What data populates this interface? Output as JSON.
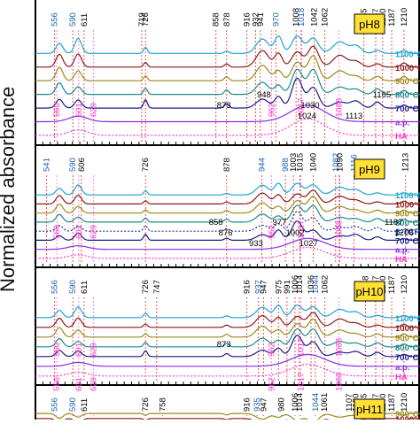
{
  "chart_data": {
    "type": "line",
    "ylabel": "Normalized absorbance",
    "x_direction": "decreasing",
    "panels": [
      {
        "label": "pH8",
        "series": [
          {
            "name": "1100°C",
            "color": "#1ba3d6"
          },
          {
            "name": "1000°C",
            "color": "#8b1a1a"
          },
          {
            "name": "900°C",
            "color": "#9a8a1a"
          },
          {
            "name": "800°C",
            "color": "#1a8a8a"
          },
          {
            "name": "700°C",
            "color": "#1a1a8a"
          },
          {
            "name": "a.p.",
            "color": "#8a2be2"
          },
          {
            "name": "HA",
            "color": "#ff33cc"
          }
        ],
        "top_labels": [
          {
            "text": "556",
            "x": 556,
            "color": "#1a5fb4"
          },
          {
            "text": "560",
            "x": 560,
            "color": "#ff33cc"
          },
          {
            "text": "590",
            "x": 590,
            "color": "#1a5fb4"
          },
          {
            "text": "601",
            "x": 601,
            "color": "#ff33cc"
          },
          {
            "text": "611",
            "x": 611,
            "color": "#000000"
          },
          {
            "text": "629",
            "x": 629,
            "color": "#ff33cc"
          },
          {
            "text": "719",
            "x": 719,
            "color": "#000000"
          },
          {
            "text": "726",
            "x": 726,
            "color": "#000000"
          },
          {
            "text": "858",
            "x": 858,
            "color": "#000000"
          },
          {
            "text": "878",
            "x": 878,
            "color": "#000000"
          },
          {
            "text": "916",
            "x": 916,
            "color": "#000000"
          },
          {
            "text": "932",
            "x": 932,
            "color": "#000000"
          },
          {
            "text": "941",
            "x": 941,
            "color": "#000000"
          },
          {
            "text": "962",
            "x": 962,
            "color": "#ff33cc"
          },
          {
            "text": "970",
            "x": 970,
            "color": "#1a5fb4"
          },
          {
            "text": "1008",
            "x": 1008,
            "color": "#000000"
          },
          {
            "text": "1018",
            "x": 1018,
            "color": "#1a5fb4"
          },
          {
            "text": "1017",
            "x": 1017,
            "color": "#ff33cc"
          },
          {
            "text": "1042",
            "x": 1042,
            "color": "#000000"
          },
          {
            "text": "1062",
            "x": 1062,
            "color": "#000000"
          },
          {
            "text": "1088",
            "x": 1088,
            "color": "#ff33cc"
          },
          {
            "text": "1135",
            "x": 1135,
            "color": "#000000"
          },
          {
            "text": "1157",
            "x": 1157,
            "color": "#000000"
          },
          {
            "text": "1170",
            "x": 1170,
            "color": "#000000"
          },
          {
            "text": "1187",
            "x": 1187,
            "color": "#000000"
          },
          {
            "text": "1210",
            "x": 1210,
            "color": "#000000"
          }
        ],
        "annotations": [
          {
            "text": "948",
            "x": 948
          },
          {
            "text": "1030",
            "x": 1030
          },
          {
            "text": "1024",
            "x": 1024
          },
          {
            "text": "1165",
            "x": 1165
          },
          {
            "text": "873",
            "x": 873
          },
          {
            "text": "1113",
            "x": 1113
          }
        ]
      },
      {
        "label": "pH9",
        "series": [
          {
            "name": "1100°C",
            "color": "#1ba3d6"
          },
          {
            "name": "1000°C",
            "color": "#8b1a1a"
          },
          {
            "name": "900°C",
            "color": "#9a8a1a"
          },
          {
            "name": "800°C",
            "color": "#1a8a8a"
          },
          {
            "name": "β-TCP",
            "color": "#1a3a9a"
          },
          {
            "name": "700°C",
            "color": "#1a1a8a"
          },
          {
            "name": "a.p.",
            "color": "#8a2be2"
          },
          {
            "name": "HA",
            "color": "#ff33cc"
          }
        ],
        "top_labels": [
          {
            "text": "541",
            "x": 541,
            "color": "#1a5fb4"
          },
          {
            "text": "560",
            "x": 560,
            "color": "#ff33cc"
          },
          {
            "text": "590",
            "x": 590,
            "color": "#1a5fb4"
          },
          {
            "text": "601",
            "x": 601,
            "color": "#ff33cc"
          },
          {
            "text": "606",
            "x": 606,
            "color": "#000000"
          },
          {
            "text": "629",
            "x": 629,
            "color": "#ff33cc"
          },
          {
            "text": "726",
            "x": 726,
            "color": "#000000"
          },
          {
            "text": "878",
            "x": 878,
            "color": "#000000"
          },
          {
            "text": "944",
            "x": 944,
            "color": "#1a5fb4"
          },
          {
            "text": "962",
            "x": 962,
            "color": "#ff33cc"
          },
          {
            "text": "988",
            "x": 988,
            "color": "#1a5fb4"
          },
          {
            "text": "1003",
            "x": 1003,
            "color": "#000000"
          },
          {
            "text": "1015",
            "x": 1015,
            "color": "#000000"
          },
          {
            "text": "1017",
            "x": 1017,
            "color": "#ff33cc"
          },
          {
            "text": "1040",
            "x": 1040,
            "color": "#000000"
          },
          {
            "text": "1082",
            "x": 1082,
            "color": "#1a5fb4"
          },
          {
            "text": "1088",
            "x": 1088,
            "color": "#ff33cc"
          },
          {
            "text": "1116",
            "x": 1116,
            "color": "#1a5fb4"
          },
          {
            "text": "1090",
            "x": 1090,
            "color": "#000000"
          },
          {
            "text": "1213",
            "x": 1213,
            "color": "#000000"
          }
        ],
        "annotations": [
          {
            "text": "858",
            "x": 858
          },
          {
            "text": "876",
            "x": 876
          },
          {
            "text": "933",
            "x": 933
          },
          {
            "text": "977",
            "x": 977
          },
          {
            "text": "1002",
            "x": 1002
          },
          {
            "text": "1027",
            "x": 1027
          },
          {
            "text": "1187",
            "x": 1187
          },
          {
            "text": "1206",
            "x": 1206
          }
        ]
      },
      {
        "label": "pH10",
        "series": [
          {
            "name": "1100°C",
            "color": "#1ba3d6"
          },
          {
            "name": "1000°C",
            "color": "#8b1a1a"
          },
          {
            "name": "900°C",
            "color": "#9a8a1a"
          },
          {
            "name": "800°C",
            "color": "#1a8a8a"
          },
          {
            "name": "700°C",
            "color": "#1a1a8a"
          },
          {
            "name": "a.p.",
            "color": "#8a2be2"
          },
          {
            "name": "HA",
            "color": "#ff33cc"
          }
        ],
        "top_labels": [
          {
            "text": "556",
            "x": 556,
            "color": "#1a5fb4"
          },
          {
            "text": "560",
            "x": 560,
            "color": "#ff33cc"
          },
          {
            "text": "590",
            "x": 590,
            "color": "#1a5fb4"
          },
          {
            "text": "601",
            "x": 601,
            "color": "#ff33cc"
          },
          {
            "text": "611",
            "x": 611,
            "color": "#000000"
          },
          {
            "text": "629",
            "x": 629,
            "color": "#ff33cc"
          },
          {
            "text": "726",
            "x": 726,
            "color": "#000000"
          },
          {
            "text": "747",
            "x": 747,
            "color": "#000000"
          },
          {
            "text": "916",
            "x": 916,
            "color": "#000000"
          },
          {
            "text": "937",
            "x": 937,
            "color": "#1a5fb4"
          },
          {
            "text": "947",
            "x": 947,
            "color": "#000000"
          },
          {
            "text": "962",
            "x": 962,
            "color": "#ff33cc"
          },
          {
            "text": "975",
            "x": 975,
            "color": "#000000"
          },
          {
            "text": "991",
            "x": 991,
            "color": "#000000"
          },
          {
            "text": "1006",
            "x": 1006,
            "color": "#000000"
          },
          {
            "text": "1014",
            "x": 1014,
            "color": "#000000"
          },
          {
            "text": "1017",
            "x": 1017,
            "color": "#ff33cc"
          },
          {
            "text": "1036",
            "x": 1036,
            "color": "#000000"
          },
          {
            "text": "1044",
            "x": 1044,
            "color": "#1a5fb4"
          },
          {
            "text": "1062",
            "x": 1062,
            "color": "#000000"
          },
          {
            "text": "1088",
            "x": 1088,
            "color": "#ff33cc"
          },
          {
            "text": "1138",
            "x": 1138,
            "color": "#000000"
          },
          {
            "text": "1157",
            "x": 1157,
            "color": "#000000"
          },
          {
            "text": "1170",
            "x": 1170,
            "color": "#000000"
          },
          {
            "text": "1187",
            "x": 1187,
            "color": "#000000"
          },
          {
            "text": "1210",
            "x": 1210,
            "color": "#000000"
          }
        ],
        "annotations": [
          {
            "text": "873",
            "x": 873
          }
        ]
      },
      {
        "label": "pH11",
        "series": [
          {
            "name": "1100°C",
            "color": "#1ba3d6"
          },
          {
            "name": "1000°C",
            "color": "#8b1a1a"
          },
          {
            "name": "900°C",
            "color": "#9a8a1a"
          }
        ],
        "top_labels": [
          {
            "text": "556",
            "x": 556,
            "color": "#1a5fb4"
          },
          {
            "text": "560",
            "x": 560,
            "color": "#ff33cc"
          },
          {
            "text": "590",
            "x": 590,
            "color": "#1a5fb4"
          },
          {
            "text": "601",
            "x": 601,
            "color": "#ff33cc"
          },
          {
            "text": "611",
            "x": 611,
            "color": "#000000"
          },
          {
            "text": "629",
            "x": 629,
            "color": "#ff33cc"
          },
          {
            "text": "726",
            "x": 726,
            "color": "#000000"
          },
          {
            "text": "758",
            "x": 758,
            "color": "#000000"
          },
          {
            "text": "916",
            "x": 916,
            "color": "#000000"
          },
          {
            "text": "935",
            "x": 935,
            "color": "#1a5fb4"
          },
          {
            "text": "947",
            "x": 947,
            "color": "#000000"
          },
          {
            "text": "962",
            "x": 962,
            "color": "#ff33cc"
          },
          {
            "text": "980",
            "x": 980,
            "color": "#000000"
          },
          {
            "text": "1006",
            "x": 1006,
            "color": "#000000"
          },
          {
            "text": "1014",
            "x": 1014,
            "color": "#000000"
          },
          {
            "text": "1017",
            "x": 1017,
            "color": "#ff33cc"
          },
          {
            "text": "1044",
            "x": 1044,
            "color": "#1a5fb4"
          },
          {
            "text": "1061",
            "x": 1061,
            "color": "#000000"
          },
          {
            "text": "1088",
            "x": 1088,
            "color": "#ff33cc"
          },
          {
            "text": "1107",
            "x": 1107,
            "color": "#000000"
          },
          {
            "text": "1120",
            "x": 1120,
            "color": "#000000"
          },
          {
            "text": "1135",
            "x": 1135,
            "color": "#000000"
          },
          {
            "text": "1157",
            "x": 1157,
            "color": "#000000"
          },
          {
            "text": "1170",
            "x": 1170,
            "color": "#000000"
          },
          {
            "text": "1187",
            "x": 1187,
            "color": "#000000"
          },
          {
            "text": "1210",
            "x": 1210,
            "color": "#000000"
          }
        ],
        "annotations": []
      }
    ]
  }
}
